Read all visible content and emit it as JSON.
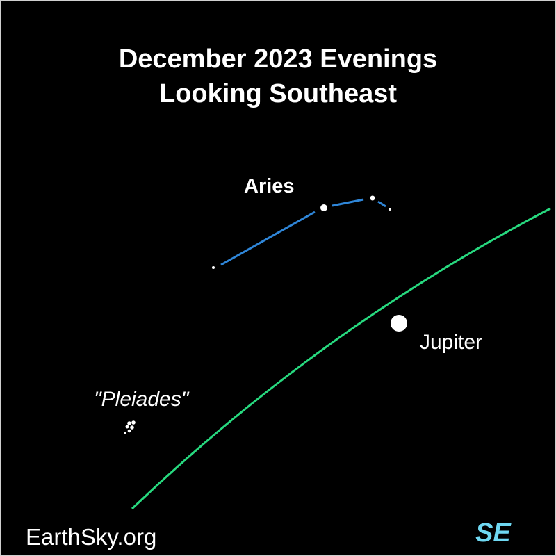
{
  "title": {
    "line1": "December 2023 Evenings",
    "line2": "Looking Southeast"
  },
  "labels": {
    "aries": "Aries",
    "jupiter": "Jupiter",
    "pleiades": "\"Pleiades\"",
    "credit": "EarthSky.org",
    "direction": "SE"
  },
  "colors": {
    "background": "#000000",
    "constellation_line": "#2f86d8",
    "ecliptic": "#27d97f",
    "direction_label": "#6fd8f2",
    "text": "#ffffff"
  }
}
